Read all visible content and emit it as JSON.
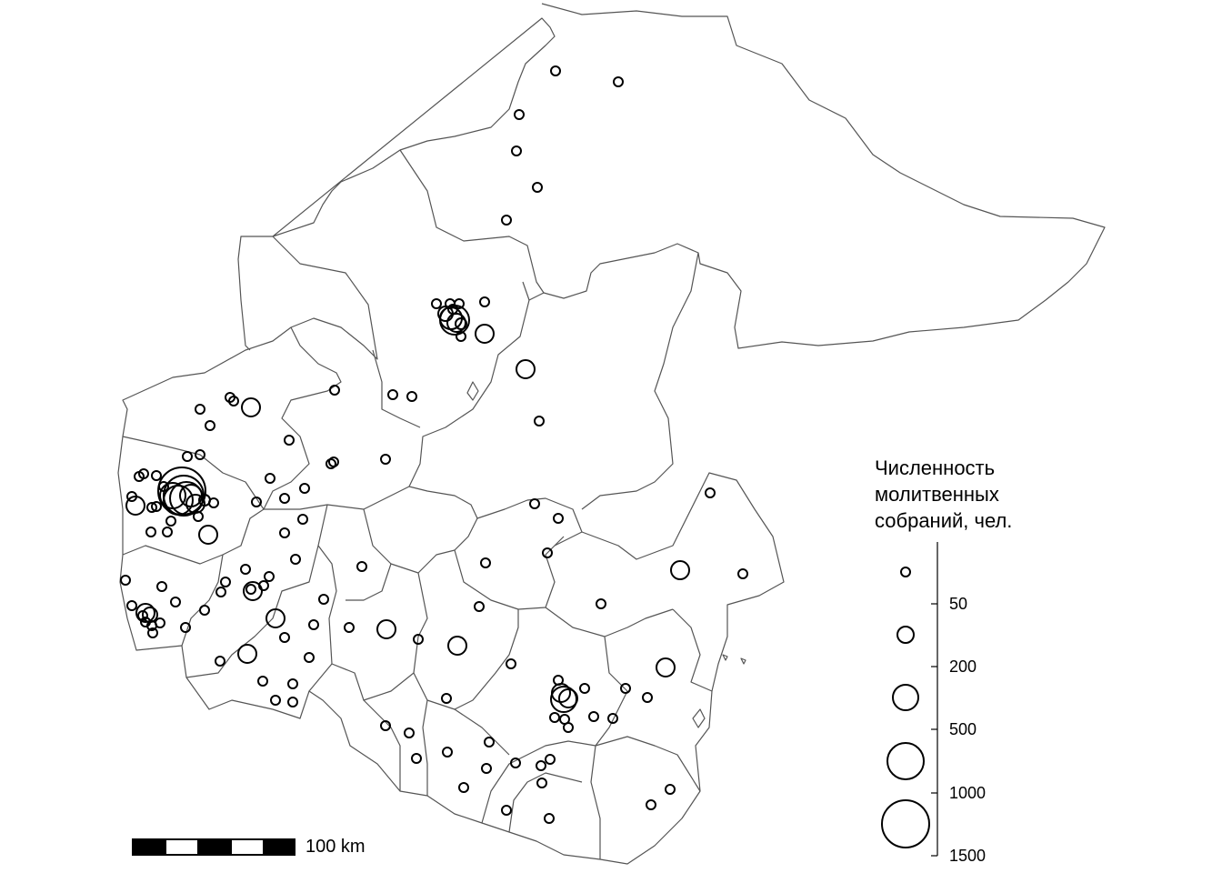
{
  "legend": {
    "title_lines": [
      "Численность",
      "молитвенных",
      "собраний, чел."
    ],
    "ticks": [
      "50",
      "200",
      "500",
      "1000",
      "1500"
    ]
  },
  "scale_bar": {
    "label": "100 km"
  },
  "colors": {
    "stroke": "#000000",
    "boundary": "#555555",
    "background": "#ffffff"
  },
  "map_data": {
    "type": "proportional_symbol_map",
    "symbol": "hollow-circle",
    "size_levels": [
      "50",
      "200",
      "500",
      "1000",
      "1500"
    ]
  }
}
